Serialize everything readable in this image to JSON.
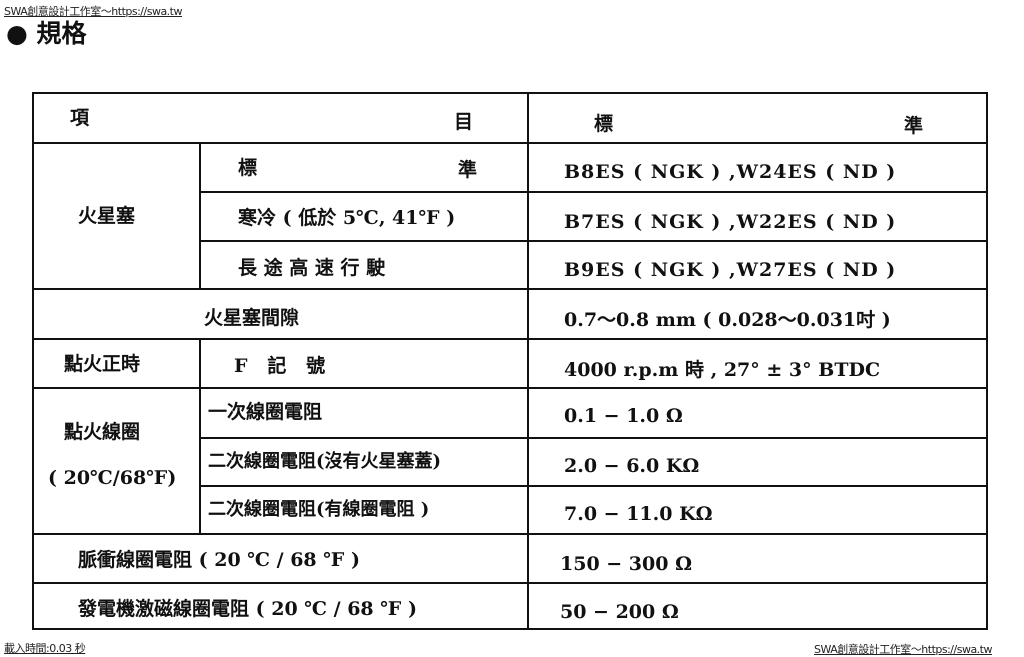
{
  "watermark_top": "SWA創意設計工作室～https://swa.tw",
  "watermark_bottom": "SWA創意設計工作室～https://swa.tw",
  "load_time": "載入時間:0.03 秒",
  "title": "● 規格",
  "table": {
    "header": {
      "item_left": "項",
      "item_right": "目",
      "std_left": "標",
      "std_right": "準"
    },
    "spark_plug": {
      "label": "火星塞",
      "rows": [
        {
          "left": "標",
          "right": "準",
          "value": "B8ES ( NGK ) ,W24ES ( ND )"
        },
        {
          "label": "寒冷 ( 低於 5℃, 41℉ )",
          "value": "B7ES ( NGK ) ,W22ES ( ND )"
        },
        {
          "label": "長 途 高 速 行 駛",
          "value": "B9ES ( NGK ) ,W27ES ( ND )"
        }
      ]
    },
    "gap": {
      "label": "火星塞間隙",
      "value": "0.7～0.8 mm ( 0.028～0.031吋 )"
    },
    "timing": {
      "label": "點火正時",
      "sub": "F   記   號",
      "value": "4000 r.p.m 時 , 27° ± 3° BTDC"
    },
    "coil": {
      "label": "點火線圈",
      "label2": "( 20℃/68℉)",
      "rows": [
        {
          "label": "一次線圈電阻",
          "value": "0.1 − 1.0 Ω"
        },
        {
          "label": "二次線圈電阻(沒有火星塞蓋)",
          "value": "2.0 − 6.0 KΩ"
        },
        {
          "label": "二次線圈電阻(有線圈電阻 )",
          "value": "7.0 − 11.0 KΩ"
        }
      ]
    },
    "pulse": {
      "label": "脈衝線圈電阻 ( 20 ℃ / 68 ℉ )",
      "value": "150 − 300 Ω"
    },
    "generator": {
      "label": "發電機激磁線圈電阻 ( 20 ℃ / 68 ℉ )",
      "value": "50 − 200 Ω"
    }
  }
}
